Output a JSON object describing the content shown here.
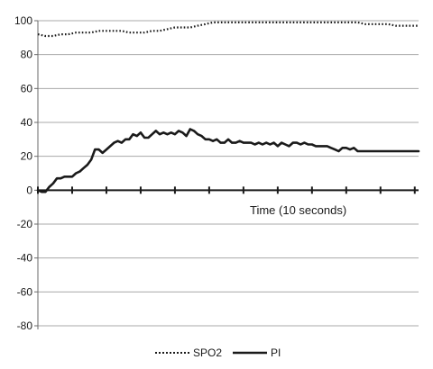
{
  "chart_data": {
    "type": "line",
    "title": "",
    "xlabel": "Time (10 seconds)",
    "ylabel": "",
    "ylim": [
      -80,
      100
    ],
    "yticks": [
      100,
      80,
      60,
      40,
      20,
      0,
      -20,
      -40,
      -60,
      -80
    ],
    "ytick_labels": [
      "100",
      "80",
      "60",
      "40",
      "20",
      "0",
      "-20",
      "-40",
      "-60",
      "-80"
    ],
    "xlim": [
      0,
      100
    ],
    "x_major_ticks": [
      0,
      9,
      18,
      27,
      36,
      45,
      54,
      63,
      72,
      81,
      90,
      99
    ],
    "grid": true,
    "legend_position": "bottom",
    "series": [
      {
        "name": "SPO2",
        "style": "dotted",
        "color": "#1a1a1a",
        "x": [
          0,
          2,
          4,
          6,
          8,
          10,
          12,
          14,
          16,
          18,
          20,
          22,
          24,
          26,
          28,
          30,
          32,
          34,
          36,
          38,
          40,
          42,
          44,
          46,
          48,
          50,
          52,
          54,
          56,
          58,
          60,
          62,
          64,
          66,
          68,
          70,
          72,
          74,
          76,
          78,
          80,
          82,
          84,
          86,
          88,
          90,
          92,
          94,
          96,
          98,
          100
        ],
        "y": [
          92,
          91,
          91,
          92,
          92,
          93,
          93,
          93,
          94,
          94,
          94,
          94,
          93,
          93,
          93,
          94,
          94,
          95,
          96,
          96,
          96,
          97,
          98,
          99,
          99,
          99,
          99,
          99,
          99,
          99,
          99,
          99,
          99,
          99,
          99,
          99,
          99,
          99,
          99,
          99,
          99,
          99,
          99,
          98,
          98,
          98,
          98,
          97,
          97,
          97,
          97
        ]
      },
      {
        "name": "PI",
        "style": "solid",
        "color": "#1a1a1a",
        "x": [
          0,
          1,
          2,
          3,
          4,
          5,
          6,
          7,
          8,
          9,
          10,
          11,
          12,
          13,
          14,
          15,
          16,
          17,
          18,
          19,
          20,
          21,
          22,
          23,
          24,
          25,
          26,
          27,
          28,
          29,
          30,
          31,
          32,
          33,
          34,
          35,
          36,
          37,
          38,
          39,
          40,
          41,
          42,
          43,
          44,
          45,
          46,
          47,
          48,
          49,
          50,
          51,
          52,
          53,
          54,
          55,
          56,
          57,
          58,
          59,
          60,
          61,
          62,
          63,
          64,
          65,
          66,
          67,
          68,
          69,
          70,
          71,
          72,
          73,
          74,
          75,
          76,
          77,
          78,
          79,
          80,
          81,
          82,
          83,
          84,
          85,
          86,
          87,
          88,
          89,
          90,
          91,
          92,
          93,
          94,
          95,
          96,
          97,
          98,
          99,
          100
        ],
        "y": [
          0,
          -1,
          -1,
          2,
          4,
          7,
          7,
          8,
          8,
          8,
          10,
          11,
          13,
          15,
          18,
          24,
          24,
          22,
          24,
          26,
          28,
          29,
          28,
          30,
          30,
          33,
          32,
          34,
          31,
          31,
          33,
          35,
          33,
          34,
          33,
          34,
          33,
          35,
          34,
          32,
          36,
          35,
          33,
          32,
          30,
          30,
          29,
          30,
          28,
          28,
          30,
          28,
          28,
          29,
          28,
          28,
          28,
          27,
          28,
          27,
          28,
          27,
          28,
          26,
          28,
          27,
          26,
          28,
          28,
          27,
          28,
          27,
          27,
          26,
          26,
          26,
          26,
          25,
          24,
          23,
          25,
          25,
          24,
          25,
          23,
          23,
          23,
          23,
          23,
          23,
          23,
          23,
          23,
          23,
          23,
          23,
          23,
          23,
          23,
          23,
          23
        ]
      }
    ]
  }
}
